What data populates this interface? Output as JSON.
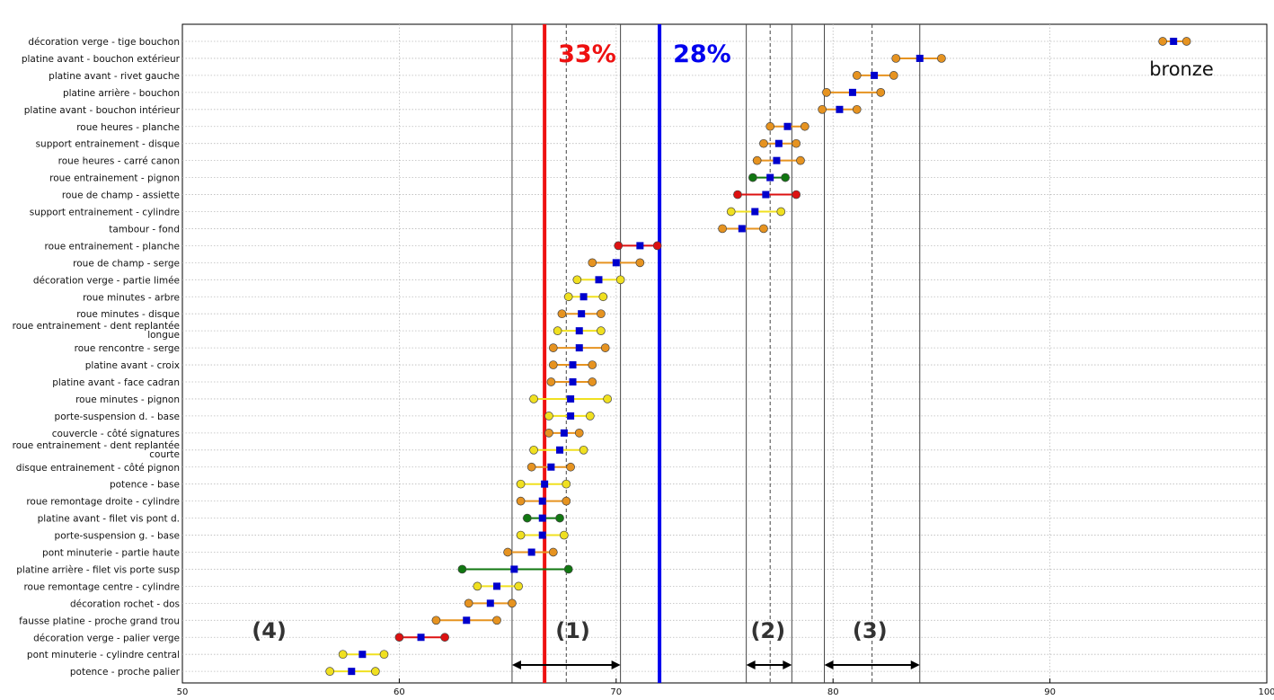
{
  "chart_data": {
    "type": "scatter",
    "xlim": [
      50,
      100
    ],
    "x_ticks": [
      "50",
      "60",
      "70",
      "80",
      "90",
      "100"
    ],
    "grid": true,
    "legend": {
      "label": "bronze",
      "position": "top-right"
    },
    "colors": {
      "marker_mean": "#0000cc",
      "orange": "#e69320",
      "yellow": "#f0e020",
      "red": "#dd1111",
      "green": "#117711",
      "line_red": "#ee1111",
      "line_blue": "#0000ee"
    },
    "reference_lines": [
      {
        "label": "33%",
        "x": 66.7,
        "color": "#ee1111"
      },
      {
        "label": "28%",
        "x": 72.0,
        "color": "#0000ee"
      }
    ],
    "zones": [
      {
        "label": "(1)",
        "from": 65.2,
        "to": 70.2,
        "center": 67.7,
        "label_x": 68.0
      },
      {
        "label": "(2)",
        "from": 76.0,
        "to": 78.1,
        "center": 77.1,
        "label_x": 77.0
      },
      {
        "label": "(3)",
        "from": 79.6,
        "to": 84.0,
        "center": 81.8,
        "label_x": 81.7
      }
    ],
    "extra_labels": [
      {
        "label": "(4)",
        "x": 54.0
      }
    ],
    "series": [
      {
        "label": "décoration verge - tige bouchon",
        "mean": null,
        "min": null,
        "max": null,
        "color": "orange"
      },
      {
        "label": "platine avant - bouchon extérieur",
        "mean": 84.0,
        "min": 82.9,
        "max": 85.0,
        "color": "orange"
      },
      {
        "label": "platine avant - rivet gauche",
        "mean": 81.9,
        "min": 81.1,
        "max": 82.8,
        "color": "orange"
      },
      {
        "label": "platine arrière - bouchon",
        "mean": 80.9,
        "min": 79.7,
        "max": 82.2,
        "color": "orange"
      },
      {
        "label": "platine avant - bouchon intérieur",
        "mean": 80.3,
        "min": 79.5,
        "max": 81.1,
        "color": "orange"
      },
      {
        "label": "roue heures - planche",
        "mean": 77.9,
        "min": 77.1,
        "max": 78.7,
        "color": "orange"
      },
      {
        "label": "support entrainement - disque",
        "mean": 77.5,
        "min": 76.8,
        "max": 78.3,
        "color": "orange"
      },
      {
        "label": "roue heures - carré canon",
        "mean": 77.4,
        "min": 76.5,
        "max": 78.5,
        "color": "orange"
      },
      {
        "label": "roue entrainement - pignon",
        "mean": 77.1,
        "min": 76.3,
        "max": 77.8,
        "color": "green"
      },
      {
        "label": "roue de champ - assiette",
        "mean": 76.9,
        "min": 75.6,
        "max": 78.3,
        "color": "red"
      },
      {
        "label": "support entrainement - cylindre",
        "mean": 76.4,
        "min": 75.3,
        "max": 77.6,
        "color": "yellow"
      },
      {
        "label": "tambour - fond",
        "mean": 75.8,
        "min": 74.9,
        "max": 76.8,
        "color": "orange"
      },
      {
        "label": "roue entrainement - planche",
        "mean": 71.1,
        "min": 70.1,
        "max": 71.9,
        "color": "red"
      },
      {
        "label": "roue de champ - serge",
        "mean": 70.0,
        "min": 68.9,
        "max": 71.1,
        "color": "orange"
      },
      {
        "label": "décoration verge - partie limée",
        "mean": 69.2,
        "min": 68.2,
        "max": 70.2,
        "color": "yellow"
      },
      {
        "label": "roue minutes - arbre",
        "mean": 68.5,
        "min": 67.8,
        "max": 69.4,
        "color": "yellow"
      },
      {
        "label": "roue minutes - disque",
        "mean": 68.4,
        "min": 67.5,
        "max": 69.3,
        "color": "orange"
      },
      {
        "label": "roue entrainement - dent replantée longue",
        "mean": 68.3,
        "min": 67.3,
        "max": 69.3,
        "color": "yellow"
      },
      {
        "label": "roue rencontre - serge",
        "mean": 68.3,
        "min": 67.1,
        "max": 69.5,
        "color": "orange"
      },
      {
        "label": "platine avant - croix",
        "mean": 68.0,
        "min": 67.1,
        "max": 68.9,
        "color": "orange"
      },
      {
        "label": "platine avant - face cadran",
        "mean": 68.0,
        "min": 67.0,
        "max": 68.9,
        "color": "orange"
      },
      {
        "label": "roue minutes - pignon",
        "mean": 67.9,
        "min": 66.2,
        "max": 69.6,
        "color": "yellow"
      },
      {
        "label": "porte-suspension d. - base",
        "mean": 67.9,
        "min": 66.9,
        "max": 68.8,
        "color": "yellow"
      },
      {
        "label": "couvercle - côté signatures",
        "mean": 67.6,
        "min": 66.9,
        "max": 68.3,
        "color": "orange"
      },
      {
        "label": "roue entrainement - dent replantée courte",
        "mean": 67.4,
        "min": 66.2,
        "max": 68.5,
        "color": "yellow"
      },
      {
        "label": "disque entrainement - côté pignon",
        "mean": 67.0,
        "min": 66.1,
        "max": 67.9,
        "color": "orange"
      },
      {
        "label": "potence - base",
        "mean": 66.7,
        "min": 65.6,
        "max": 67.7,
        "color": "yellow"
      },
      {
        "label": "roue remontage droite - cylindre",
        "mean": 66.6,
        "min": 65.6,
        "max": 67.7,
        "color": "orange"
      },
      {
        "label": "platine avant - filet vis pont d.",
        "mean": 66.6,
        "min": 65.9,
        "max": 67.4,
        "color": "green"
      },
      {
        "label": "porte-suspension g. - base",
        "mean": 66.6,
        "min": 65.6,
        "max": 67.6,
        "color": "yellow"
      },
      {
        "label": "pont minuterie - partie haute",
        "mean": 66.1,
        "min": 65.0,
        "max": 67.1,
        "color": "orange"
      },
      {
        "label": "platine arrière - filet vis porte susp",
        "mean": 65.3,
        "min": 62.9,
        "max": 67.8,
        "color": "green"
      },
      {
        "label": "roue remontage centre - cylindre",
        "mean": 64.5,
        "min": 63.6,
        "max": 65.5,
        "color": "yellow"
      },
      {
        "label": "décoration rochet - dos",
        "mean": 64.2,
        "min": 63.2,
        "max": 65.2,
        "color": "orange"
      },
      {
        "label": "fausse platine - proche grand trou",
        "mean": 63.1,
        "min": 61.7,
        "max": 64.5,
        "color": "orange"
      },
      {
        "label": "décoration verge - palier verge",
        "mean": 61.0,
        "min": 60.0,
        "max": 62.1,
        "color": "red"
      },
      {
        "label": "pont minuterie - cylindre central",
        "mean": 58.3,
        "min": 57.4,
        "max": 59.3,
        "color": "yellow"
      },
      {
        "label": "potence - proche palier",
        "mean": 57.8,
        "min": 56.8,
        "max": 58.9,
        "color": "yellow"
      }
    ],
    "legend_sample": {
      "mean": 95.7,
      "min": 95.2,
      "max": 96.3,
      "color": "orange"
    }
  }
}
